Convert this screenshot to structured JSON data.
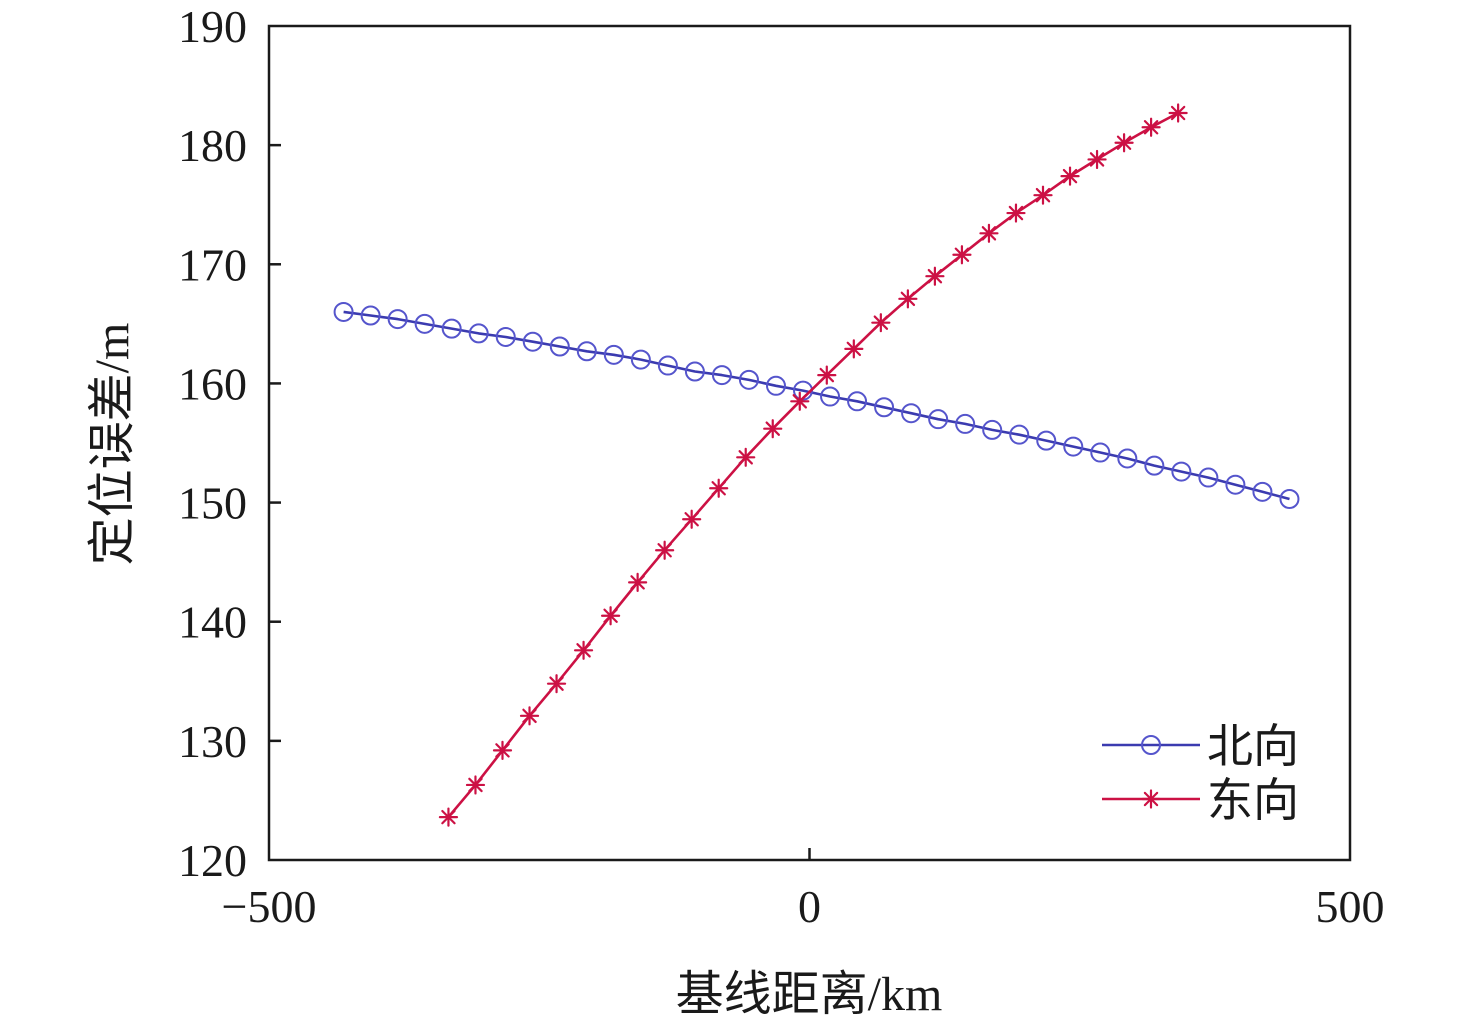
{
  "chart_data": {
    "type": "line",
    "xlabel": "基线距离/km",
    "ylabel": "定位误差/m",
    "xlim": [
      -500,
      500
    ],
    "ylim": [
      120,
      190
    ],
    "x_ticks": [
      "−500",
      "0",
      "500"
    ],
    "x_tick_values": [
      -500,
      0,
      500
    ],
    "y_ticks": [
      "120",
      "130",
      "140",
      "150",
      "160",
      "170",
      "180",
      "190"
    ],
    "y_tick_values": [
      120,
      130,
      140,
      150,
      160,
      170,
      180,
      190
    ],
    "grid": false,
    "legend_position": "bottom-right",
    "series": [
      {
        "name": "北向",
        "marker": "circle",
        "color": "#3b3bb0",
        "marker_color": "#5555cc",
        "x": [
          -431,
          -406,
          -381,
          -356,
          -331,
          -306,
          -281,
          -256,
          -231,
          -206,
          -181,
          -156,
          -131,
          -106,
          -81,
          -56,
          -31,
          -6,
          19,
          44,
          69,
          94,
          119,
          144,
          169,
          194,
          219,
          244,
          269,
          294,
          319,
          344,
          369,
          394,
          419,
          444
        ],
        "y": [
          166.0,
          165.7,
          165.4,
          165.0,
          164.6,
          164.2,
          163.9,
          163.5,
          163.1,
          162.7,
          162.4,
          162.0,
          161.5,
          161.0,
          160.7,
          160.3,
          159.8,
          159.4,
          158.9,
          158.5,
          158.0,
          157.5,
          157.0,
          156.6,
          156.1,
          155.7,
          155.2,
          154.7,
          154.2,
          153.7,
          153.1,
          152.6,
          152.1,
          151.5,
          150.9,
          150.3
        ]
      },
      {
        "name": "东向",
        "marker": "star",
        "color": "#cc1144",
        "marker_color": "#cc1144",
        "x": [
          -334,
          -309,
          -284,
          -259,
          -234,
          -209,
          -184,
          -159,
          -134,
          -109,
          -84,
          -59,
          -34,
          -9,
          16,
          41,
          66,
          91,
          116,
          141,
          166,
          191,
          216,
          241,
          266,
          291,
          316,
          341
        ],
        "y": [
          123.6,
          126.3,
          129.2,
          132.1,
          134.8,
          137.6,
          140.5,
          143.3,
          146.0,
          148.6,
          151.2,
          153.8,
          156.2,
          158.5,
          160.7,
          162.9,
          165.1,
          167.1,
          169.0,
          170.8,
          172.6,
          174.3,
          175.8,
          177.4,
          178.8,
          180.2,
          181.5,
          182.7
        ]
      }
    ]
  }
}
